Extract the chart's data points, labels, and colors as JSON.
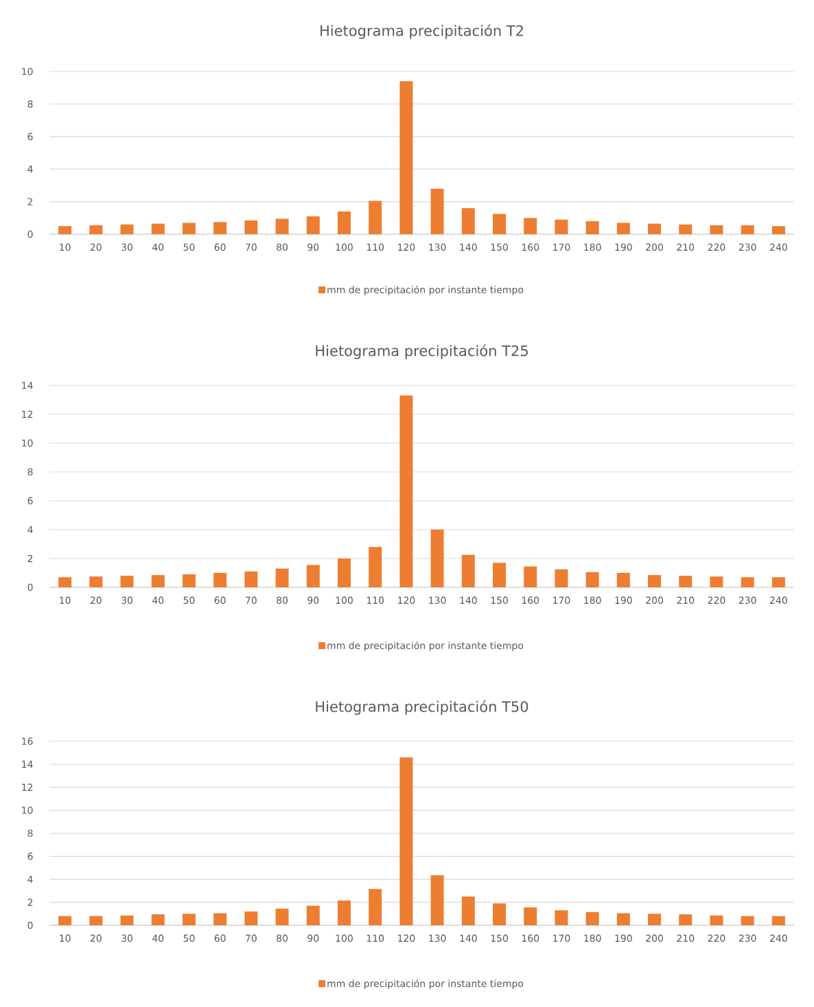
{
  "chart_data": [
    {
      "type": "bar",
      "title": "Hietograma precipitación T2",
      "categories": [
        "10",
        "20",
        "30",
        "40",
        "50",
        "60",
        "70",
        "80",
        "90",
        "100",
        "110",
        "120",
        "130",
        "140",
        "150",
        "160",
        "170",
        "180",
        "190",
        "200",
        "210",
        "220",
        "230",
        "240"
      ],
      "series": [
        {
          "name": "mm de precipitación por instante tiempo",
          "color": "#ed7d31",
          "values": [
            0.5,
            0.55,
            0.6,
            0.65,
            0.7,
            0.75,
            0.85,
            0.95,
            1.1,
            1.4,
            2.05,
            9.4,
            2.8,
            1.6,
            1.25,
            1.0,
            0.9,
            0.8,
            0.7,
            0.65,
            0.6,
            0.55,
            0.55,
            0.5
          ]
        }
      ],
      "ylim": [
        0,
        10
      ],
      "yticks": [
        0,
        2,
        4,
        6,
        8,
        10
      ],
      "grid": "y",
      "legend": "bottom"
    },
    {
      "type": "bar",
      "title": "Hietograma precipitación T25",
      "categories": [
        "10",
        "20",
        "30",
        "40",
        "50",
        "60",
        "70",
        "80",
        "90",
        "100",
        "110",
        "120",
        "130",
        "140",
        "150",
        "160",
        "170",
        "180",
        "190",
        "200",
        "210",
        "220",
        "230",
        "240"
      ],
      "series": [
        {
          "name": "mm de precipitación por instante tiempo",
          "color": "#ed7d31",
          "values": [
            0.7,
            0.75,
            0.8,
            0.85,
            0.9,
            1.0,
            1.1,
            1.3,
            1.55,
            2.0,
            2.8,
            13.3,
            4.0,
            2.25,
            1.7,
            1.45,
            1.25,
            1.05,
            1.0,
            0.85,
            0.8,
            0.75,
            0.7,
            0.7
          ]
        }
      ],
      "ylim": [
        0,
        14
      ],
      "yticks": [
        0,
        2,
        4,
        6,
        8,
        10,
        12,
        14
      ],
      "grid": "y",
      "legend": "bottom"
    },
    {
      "type": "bar",
      "title": "Hietograma precipitación T50",
      "categories": [
        "10",
        "20",
        "30",
        "40",
        "50",
        "60",
        "70",
        "80",
        "90",
        "100",
        "110",
        "120",
        "130",
        "140",
        "150",
        "160",
        "170",
        "180",
        "190",
        "200",
        "210",
        "220",
        "230",
        "240"
      ],
      "series": [
        {
          "name": "mm de precipitación por instante tiempo",
          "color": "#ed7d31",
          "values": [
            0.8,
            0.8,
            0.85,
            0.95,
            1.0,
            1.05,
            1.2,
            1.45,
            1.7,
            2.15,
            3.15,
            14.6,
            4.35,
            2.5,
            1.9,
            1.55,
            1.3,
            1.15,
            1.05,
            1.0,
            0.95,
            0.85,
            0.8,
            0.8
          ]
        }
      ],
      "ylim": [
        0,
        16
      ],
      "yticks": [
        0,
        2,
        4,
        6,
        8,
        10,
        12,
        14,
        16
      ],
      "grid": "y",
      "legend": "bottom"
    }
  ]
}
